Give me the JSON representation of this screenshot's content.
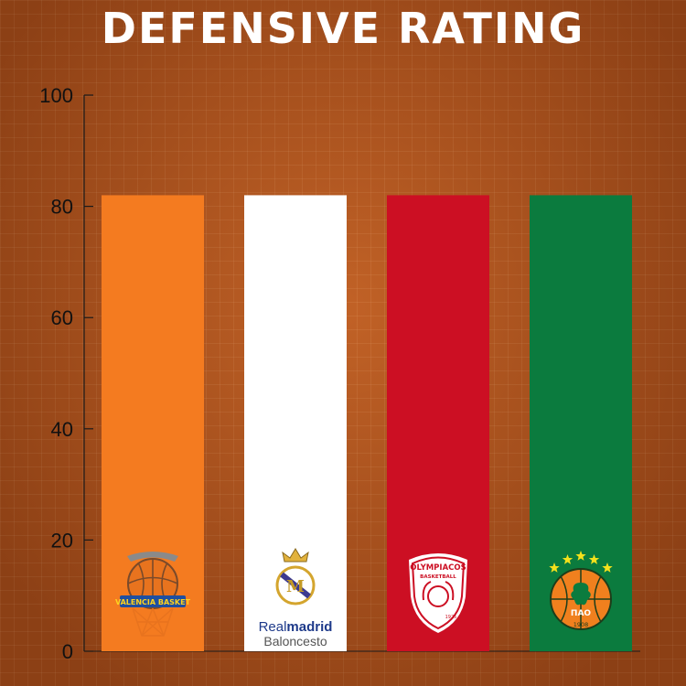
{
  "chart_data": {
    "type": "bar",
    "title": "DEFENSIVE RATING",
    "xlabel": "",
    "ylabel": "",
    "ylim": [
      0,
      100
    ],
    "yticks": [
      0,
      20,
      40,
      60,
      80,
      100
    ],
    "grid": false,
    "legend": "none",
    "categories": [
      "Valencia Basket",
      "Real Madrid Baloncesto",
      "Olympiacos Basketball",
      "Panathinaikos"
    ],
    "values": [
      82,
      82,
      82,
      82
    ],
    "colors": [
      "#f47b20",
      "#ffffff",
      "#cc0f23",
      "#0b7b3e"
    ],
    "logos": [
      {
        "name": "valencia-basket-logo",
        "text": "VALENCIA BASKET"
      },
      {
        "name": "real-madrid-logo",
        "text_line1_a": "Real",
        "text_line1_b": "madrid",
        "text_line2": "Baloncesto"
      },
      {
        "name": "olympiacos-logo",
        "text_top": "OLYMPIACOS",
        "text_sub": "BASKETBALL",
        "text_year": "1925"
      },
      {
        "name": "panathinaikos-logo",
        "text": "ΠΑΟ",
        "text_year": "1908"
      }
    ]
  }
}
